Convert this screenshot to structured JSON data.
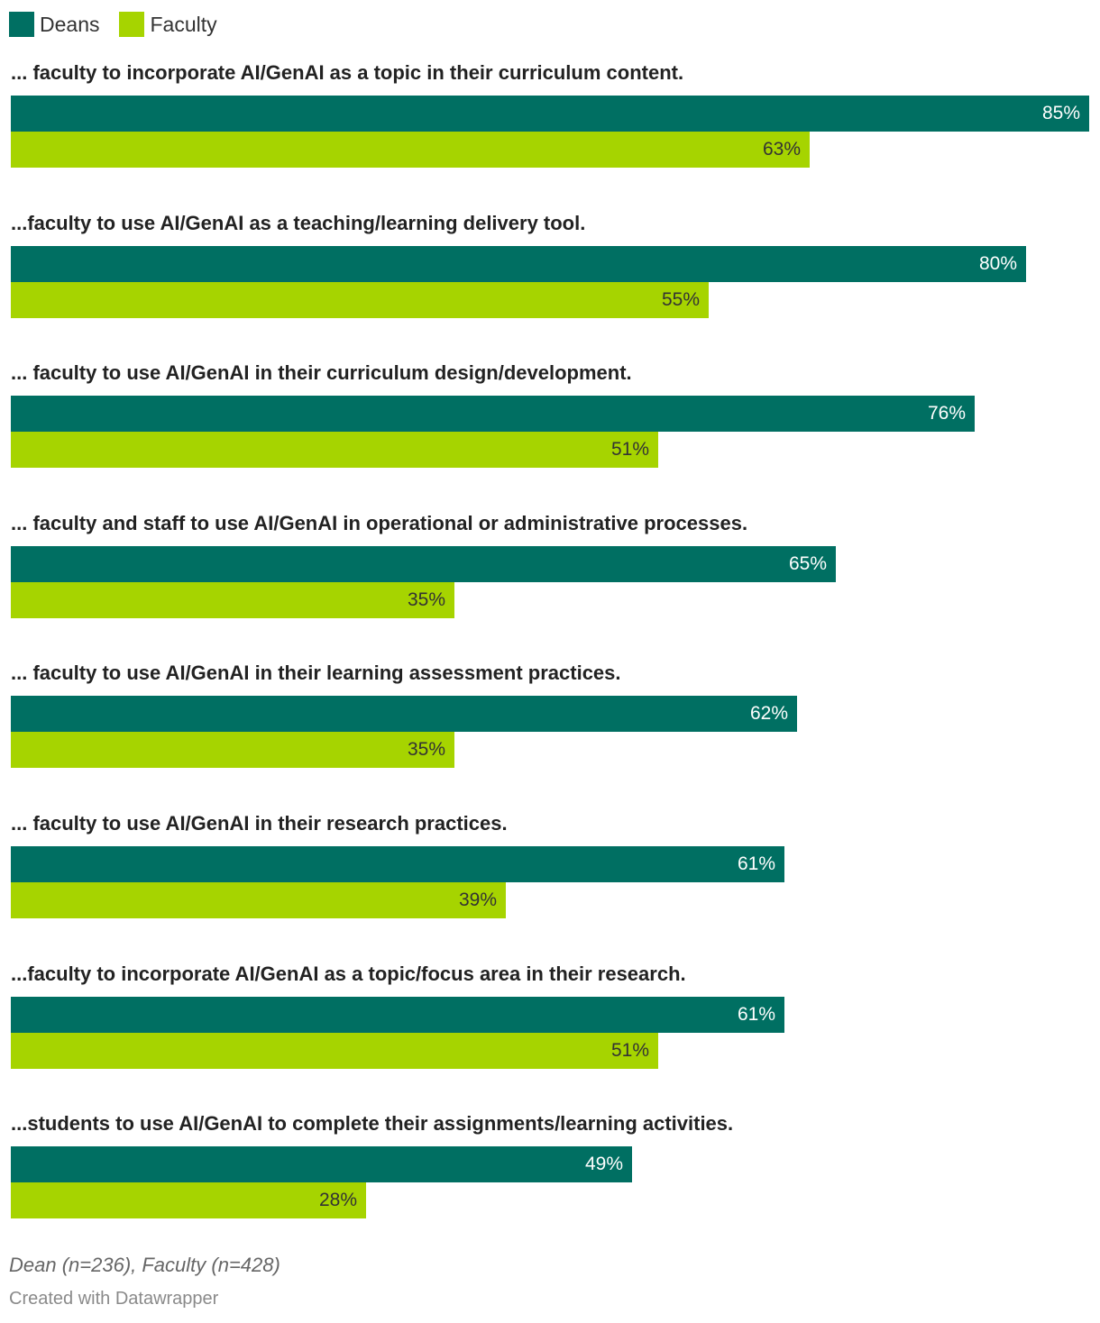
{
  "legend": [
    {
      "name": "Deans",
      "color": "#006f62"
    },
    {
      "name": "Faculty",
      "color": "#a6d400"
    }
  ],
  "chart_data": {
    "type": "bar",
    "orientation": "horizontal",
    "categories": [
      "... faculty to incorporate AI/GenAI as a topic in their curriculum content.",
      "...faculty to use AI/GenAI as a teaching/learning delivery tool.",
      "... faculty to use AI/GenAI in their curriculum design/development.",
      "... faculty and staff to use AI/GenAI in operational or administrative processes.",
      "... faculty to use AI/GenAI in their learning assessment practices.",
      "... faculty to use AI/GenAI in their research practices.",
      "...faculty to incorporate AI/GenAI as a topic/focus area in their research.",
      "...students to use AI/GenAI to complete their assignments/learning activities."
    ],
    "series": [
      {
        "name": "Deans",
        "color": "#006f62",
        "label_color": "#ffffff",
        "values": [
          85,
          80,
          76,
          65,
          62,
          61,
          61,
          49
        ]
      },
      {
        "name": "Faculty",
        "color": "#a6d400",
        "label_color": "#333333",
        "values": [
          63,
          55,
          51,
          35,
          35,
          39,
          51,
          28
        ]
      }
    ],
    "value_suffix": "%",
    "xlim": [
      0,
      85
    ],
    "grid": false,
    "legend_position": "top-left"
  },
  "notes": "Dean (n=236), Faculty (n=428)",
  "credit": "Created with Datawrapper"
}
